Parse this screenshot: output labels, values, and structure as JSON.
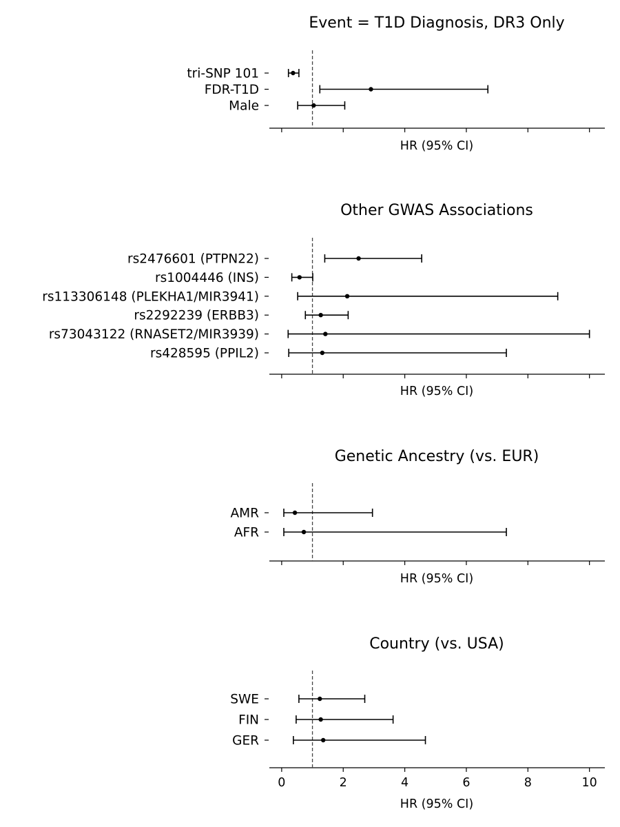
{
  "chart_data": [
    {
      "type": "forest",
      "title": "Event = T1D Diagnosis, DR3 Only",
      "xlabel": "HR (95% CI)",
      "xlim": [
        -0.4,
        10.5
      ],
      "reference_line": 1,
      "show_xtick_labels": false,
      "rows": [
        {
          "label": "tri-SNP 101",
          "hr": 0.37,
          "lo": 0.22,
          "hi": 0.56
        },
        {
          "label": "FDR-T1D",
          "hr": 2.9,
          "lo": 1.24,
          "hi": 6.7
        },
        {
          "label": "Male",
          "hr": 1.04,
          "lo": 0.52,
          "hi": 2.05
        }
      ]
    },
    {
      "type": "forest",
      "title": "Other GWAS Associations",
      "xlabel": "HR (95% CI)",
      "xlim": [
        -0.4,
        10.5
      ],
      "reference_line": 1,
      "show_xtick_labels": false,
      "rows": [
        {
          "label": "rs2476601 (PTPN22)",
          "hr": 2.5,
          "lo": 1.4,
          "hi": 4.55
        },
        {
          "label": "rs1004446 (INS)",
          "hr": 0.58,
          "lo": 0.33,
          "hi": 1.01
        },
        {
          "label": "rs113306148 (PLEKHA1/MIR3941)",
          "hr": 2.13,
          "lo": 0.52,
          "hi": 8.97
        },
        {
          "label": "rs2292239 (ERBB3)",
          "hr": 1.27,
          "lo": 0.77,
          "hi": 2.16
        },
        {
          "label": "rs73043122 (RNASET2/MIR3939)",
          "hr": 1.42,
          "lo": 0.21,
          "hi": 10.0
        },
        {
          "label": "rs428595 (PPIL2)",
          "hr": 1.32,
          "lo": 0.23,
          "hi": 7.3
        }
      ]
    },
    {
      "type": "forest",
      "title": "Genetic Ancestry (vs. EUR)",
      "xlabel": "HR (95% CI)",
      "xlim": [
        -0.4,
        10.5
      ],
      "reference_line": 1,
      "show_xtick_labels": false,
      "rows": [
        {
          "label": "AMR",
          "hr": 0.43,
          "lo": 0.07,
          "hi": 2.95
        },
        {
          "label": "AFR",
          "hr": 0.72,
          "lo": 0.07,
          "hi": 7.3
        }
      ]
    },
    {
      "type": "forest",
      "title": "Country (vs. USA)",
      "xlabel": "HR (95% CI)",
      "xlim": [
        -0.4,
        10.5
      ],
      "reference_line": 1,
      "show_xtick_labels": true,
      "xticks": [
        0,
        2,
        4,
        6,
        8,
        10
      ],
      "rows": [
        {
          "label": "SWE",
          "hr": 1.24,
          "lo": 0.56,
          "hi": 2.7
        },
        {
          "label": "FIN",
          "hr": 1.27,
          "lo": 0.47,
          "hi": 3.62
        },
        {
          "label": "GER",
          "hr": 1.35,
          "lo": 0.38,
          "hi": 4.67
        }
      ]
    }
  ]
}
